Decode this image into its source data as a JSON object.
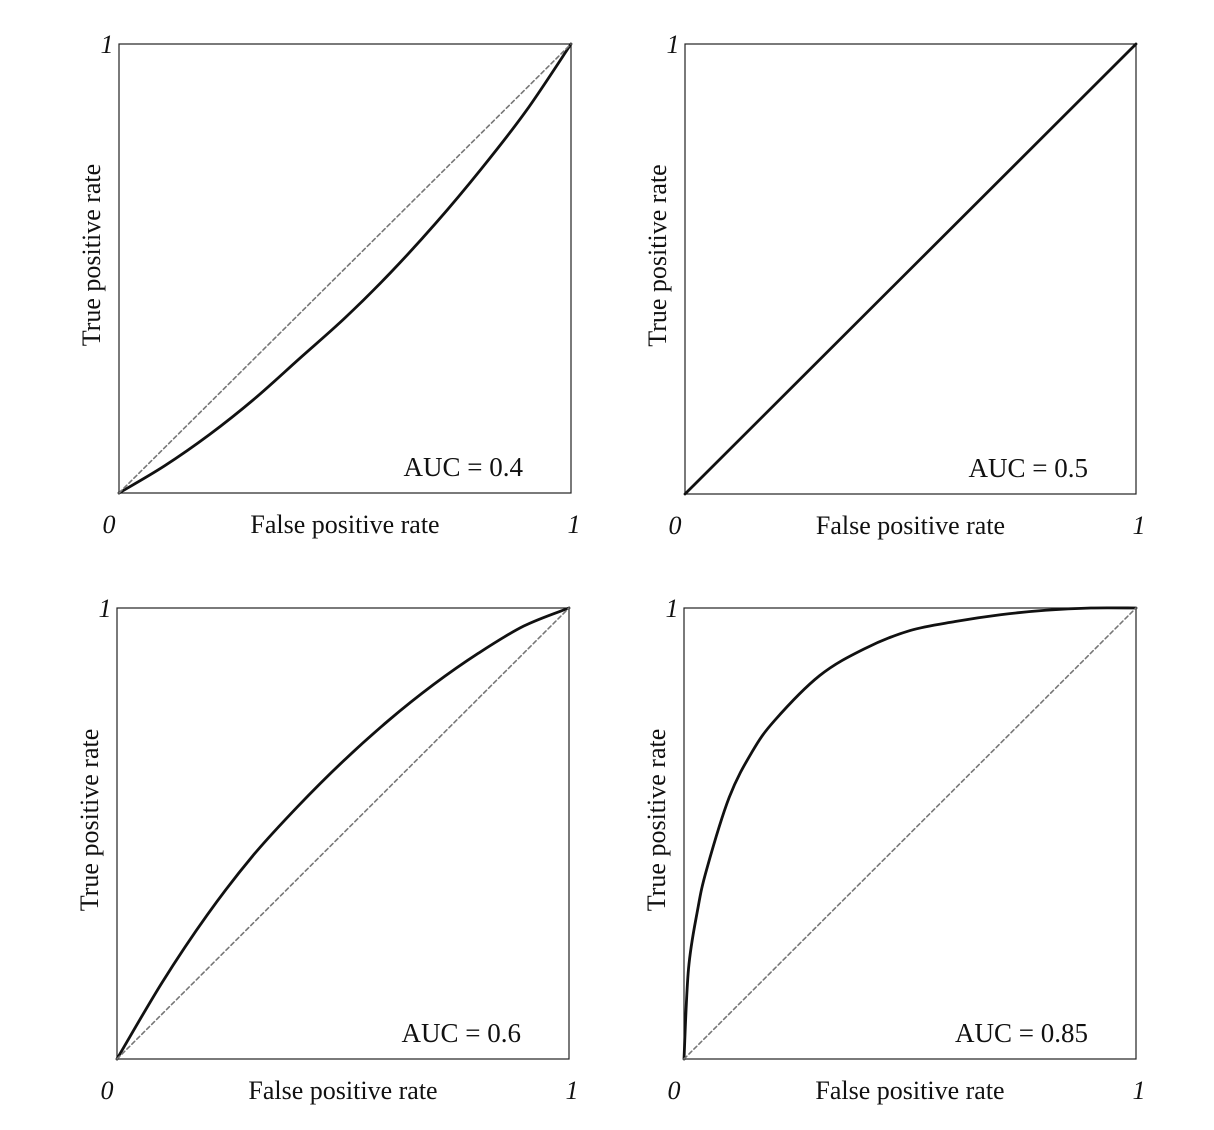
{
  "chart_data": [
    {
      "type": "line",
      "xlabel": "False positive rate",
      "ylabel": "True positive rate",
      "xlim": [
        0,
        1
      ],
      "ylim": [
        0,
        1
      ],
      "x_ticks": [
        "0",
        "1"
      ],
      "y_ticks": [
        "1"
      ],
      "annotation": "AUC = 0.4",
      "auc": 0.4,
      "grid": false,
      "legend": "none",
      "series": [
        {
          "x": [
            0,
            0.1,
            0.2,
            0.3,
            0.4,
            0.5,
            0.6,
            0.7,
            0.8,
            0.9,
            1.0
          ],
          "y": [
            0,
            0.06,
            0.13,
            0.21,
            0.3,
            0.39,
            0.49,
            0.6,
            0.72,
            0.85,
            1.0
          ],
          "color": "#111111",
          "style": "solid"
        },
        {
          "x": [
            0,
            1
          ],
          "y": [
            0,
            1
          ],
          "color": "#777777",
          "style": "dotted"
        }
      ]
    },
    {
      "type": "line",
      "xlabel": "False positive rate",
      "ylabel": "True positive rate",
      "xlim": [
        0,
        1
      ],
      "ylim": [
        0,
        1
      ],
      "x_ticks": [
        "0",
        "1"
      ],
      "y_ticks": [
        "1"
      ],
      "annotation": "AUC = 0.5",
      "auc": 0.5,
      "grid": false,
      "legend": "none",
      "series": [
        {
          "x": [
            0,
            1
          ],
          "y": [
            0,
            1
          ],
          "color": "#111111",
          "style": "solid"
        }
      ]
    },
    {
      "type": "line",
      "xlabel": "False positive rate",
      "ylabel": "True positive rate",
      "xlim": [
        0,
        1
      ],
      "ylim": [
        0,
        1
      ],
      "x_ticks": [
        "0",
        "1"
      ],
      "y_ticks": [
        "1"
      ],
      "annotation": "AUC = 0.6",
      "auc": 0.6,
      "grid": false,
      "legend": "none",
      "series": [
        {
          "x": [
            0,
            0.1,
            0.2,
            0.3,
            0.4,
            0.5,
            0.6,
            0.7,
            0.8,
            0.9,
            1.0
          ],
          "y": [
            0,
            0.17,
            0.32,
            0.45,
            0.56,
            0.66,
            0.75,
            0.83,
            0.9,
            0.96,
            1.0
          ],
          "color": "#111111",
          "style": "solid"
        },
        {
          "x": [
            0,
            1
          ],
          "y": [
            0,
            1
          ],
          "color": "#777777",
          "style": "dotted"
        }
      ]
    },
    {
      "type": "line",
      "xlabel": "False positive rate",
      "ylabel": "True positive rate",
      "xlim": [
        0,
        1
      ],
      "ylim": [
        0,
        1
      ],
      "x_ticks": [
        "0",
        "1"
      ],
      "y_ticks": [
        "1"
      ],
      "annotation": "AUC = 0.85",
      "auc": 0.85,
      "grid": false,
      "legend": "none",
      "series": [
        {
          "x": [
            0,
            0.01,
            0.03,
            0.05,
            0.1,
            0.15,
            0.2,
            0.3,
            0.4,
            0.5,
            0.6,
            0.7,
            0.8,
            0.9,
            1.0
          ],
          "y": [
            0,
            0.2,
            0.33,
            0.42,
            0.58,
            0.68,
            0.75,
            0.85,
            0.91,
            0.95,
            0.97,
            0.985,
            0.995,
            1.0,
            1.0
          ],
          "color": "#111111",
          "style": "solid"
        },
        {
          "x": [
            0,
            1
          ],
          "y": [
            0,
            1
          ],
          "color": "#777777",
          "style": "dotted"
        }
      ]
    }
  ]
}
